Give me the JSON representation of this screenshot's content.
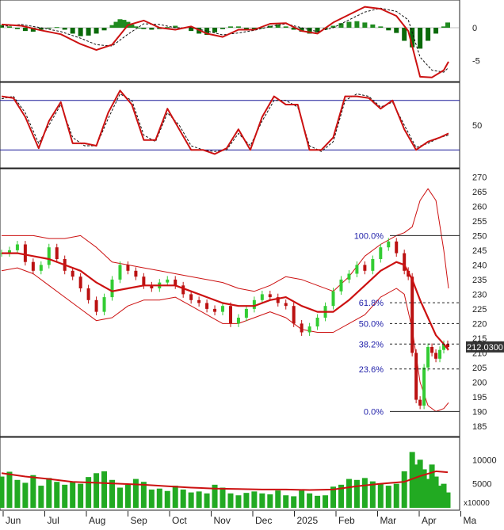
{
  "colors": {
    "frame": "#222222",
    "main_line": "#cc1111",
    "signal_line": "#111111",
    "hist_pos": "#1f8a1f",
    "hist_neg": "#0a6a0a",
    "candle_up": "#33cc33",
    "candle_down": "#bb1111",
    "fib_label": "#2222aa",
    "fib_line": "#222222",
    "rsi_band": "#1a1a99",
    "volume_bar": "#22aa22",
    "price_tag_bg": "#333333",
    "price_tag_text": "#ffffff"
  },
  "x_axis": {
    "labels": [
      "Jun",
      "Jul",
      "Aug",
      "Sep",
      "Oct",
      "Nov",
      "Dec",
      "2025",
      "Feb",
      "Mar",
      "Apr",
      "Ma"
    ]
  },
  "chart_data": [
    {
      "type": "bar",
      "panel": "macd",
      "ylim": [
        -8,
        4
      ],
      "ticks": [
        0,
        -5
      ],
      "tick_labels": [
        "0",
        "-5"
      ],
      "series": [
        {
          "role": "histogram",
          "x": [
            0,
            10,
            20,
            30,
            40,
            50,
            60,
            70,
            80,
            90,
            100,
            110,
            120,
            130,
            140,
            145,
            150,
            155,
            160,
            165,
            170,
            175,
            180,
            190,
            200,
            210,
            220,
            230,
            240,
            250,
            260,
            270,
            280,
            290,
            300,
            310,
            320,
            330,
            340,
            350,
            360,
            370,
            380,
            390,
            400,
            410,
            420,
            430,
            440,
            450,
            460,
            470,
            480,
            490,
            500,
            510,
            520,
            530,
            540,
            550,
            560,
            565
          ],
          "values": [
            0.4,
            0.2,
            -0.2,
            -0.5,
            -0.6,
            -0.3,
            -0.1,
            0.1,
            -0.3,
            -0.9,
            -1.3,
            -1.2,
            -0.9,
            -0.4,
            0.4,
            0.9,
            1.3,
            1.2,
            0.9,
            0.5,
            0.2,
            0,
            -0.2,
            -0.3,
            -0.2,
            0.1,
            0.3,
            -0.1,
            -0.5,
            -0.9,
            -1.1,
            -0.7,
            -0.2,
            0.2,
            0.2,
            -0.3,
            -0.2,
            0,
            0.3,
            0.5,
            0.2,
            -0.3,
            -0.6,
            -0.9,
            -0.7,
            -0.3,
            0.3,
            0.7,
            0.9,
            1.0,
            0.8,
            0.5,
            0.2,
            -0.4,
            -0.8,
            -2.0,
            -3.0,
            -3.2,
            -2.0,
            -0.9,
            0.2,
            0.8
          ]
        },
        {
          "role": "main",
          "x": [
            0,
            25,
            50,
            75,
            100,
            120,
            140,
            160,
            180,
            200,
            220,
            240,
            260,
            280,
            300,
            320,
            340,
            360,
            380,
            400,
            420,
            440,
            460,
            480,
            500,
            515,
            530,
            545,
            560,
            566
          ],
          "values": [
            0.5,
            0.3,
            -0.4,
            -1.0,
            -2.5,
            -3.4,
            -2.6,
            0.4,
            1.1,
            0,
            -0.3,
            0.2,
            -0.9,
            -1.4,
            -0.3,
            -0.3,
            0.6,
            0.7,
            -0.5,
            -0.9,
            0.8,
            2.0,
            3.2,
            2.9,
            1.8,
            -0.5,
            -7.5,
            -7.6,
            -6.5,
            -5.2
          ]
        },
        {
          "role": "signal",
          "x": [
            0,
            25,
            50,
            75,
            100,
            120,
            140,
            160,
            180,
            200,
            220,
            240,
            260,
            280,
            300,
            320,
            340,
            360,
            380,
            400,
            420,
            440,
            460,
            480,
            500,
            515,
            530,
            545,
            560,
            566
          ],
          "values": [
            0.2,
            0.5,
            0,
            -0.6,
            -1.6,
            -2.6,
            -2.8,
            -1.0,
            0.6,
            0.5,
            0,
            0,
            -0.5,
            -1.1,
            -0.8,
            -0.4,
            0.2,
            0.6,
            0,
            -0.6,
            0,
            1.2,
            2.4,
            3.0,
            2.5,
            1.2,
            -4.5,
            -6.5,
            -6.8,
            -6.1
          ]
        }
      ]
    },
    {
      "type": "line",
      "panel": "oscillator",
      "ylim": [
        0,
        100
      ],
      "ticks": [
        50
      ],
      "tick_labels": [
        "50"
      ],
      "bands": [
        80,
        20
      ],
      "series": [
        {
          "role": "main",
          "x": [
            0,
            15,
            30,
            47,
            60,
            75,
            90,
            105,
            120,
            135,
            150,
            165,
            180,
            195,
            210,
            225,
            240,
            255,
            270,
            285,
            300,
            315,
            330,
            345,
            360,
            375,
            390,
            405,
            420,
            435,
            450,
            465,
            480,
            495,
            510,
            525,
            540,
            555,
            566
          ],
          "values": [
            85,
            83,
            60,
            22,
            55,
            78,
            28,
            28,
            25,
            65,
            92,
            75,
            32,
            32,
            70,
            45,
            20,
            20,
            15,
            22,
            45,
            20,
            60,
            85,
            75,
            75,
            20,
            20,
            35,
            85,
            85,
            83,
            70,
            80,
            45,
            20,
            30,
            35,
            40
          ]
        },
        {
          "role": "signal",
          "x": [
            0,
            15,
            30,
            47,
            60,
            75,
            90,
            105,
            120,
            135,
            150,
            165,
            180,
            195,
            210,
            225,
            240,
            255,
            270,
            285,
            300,
            315,
            330,
            345,
            360,
            375,
            390,
            405,
            420,
            435,
            450,
            465,
            480,
            495,
            510,
            525,
            540,
            555,
            566
          ],
          "values": [
            82,
            85,
            65,
            28,
            50,
            75,
            35,
            25,
            25,
            58,
            88,
            80,
            38,
            30,
            65,
            50,
            25,
            20,
            18,
            20,
            40,
            25,
            55,
            80,
            80,
            72,
            25,
            18,
            30,
            80,
            88,
            85,
            72,
            78,
            50,
            23,
            28,
            35,
            38
          ]
        }
      ]
    },
    {
      "type": "candlestick",
      "panel": "price",
      "ylim": [
        182,
        272
      ],
      "ticks": [
        185,
        190,
        195,
        200,
        205,
        210,
        215,
        220,
        225,
        230,
        235,
        240,
        245,
        250,
        255,
        260,
        265,
        270
      ],
      "tick_labels": [
        "185",
        "190",
        "195",
        "200",
        "205",
        "210",
        "215",
        "220",
        "225",
        "230",
        "235",
        "240",
        "245",
        "250",
        "255",
        "260",
        "265",
        "270"
      ],
      "current_price_label": "212.0300",
      "current_price": 212.03,
      "fibonacci": [
        {
          "label": "100.0%",
          "value": 250,
          "style": "solid"
        },
        {
          "label": "61.8%",
          "value": 227.1,
          "style": "dashed"
        },
        {
          "label": "50.0%",
          "value": 220,
          "style": "dashed"
        },
        {
          "label": "38.2%",
          "value": 213,
          "style": "dashed"
        },
        {
          "label": "23.6%",
          "value": 204.5,
          "style": "dashed"
        },
        {
          "label": "0.0%",
          "value": 190,
          "style": "solid"
        }
      ],
      "close_x": [
        0,
        10,
        20,
        30,
        40,
        50,
        60,
        70,
        80,
        90,
        100,
        110,
        120,
        130,
        140,
        150,
        160,
        170,
        180,
        190,
        200,
        210,
        220,
        230,
        240,
        250,
        260,
        270,
        280,
        290,
        300,
        310,
        320,
        330,
        340,
        350,
        360,
        370,
        380,
        390,
        400,
        410,
        420,
        430,
        440,
        450,
        460,
        470,
        480,
        490,
        500,
        510,
        515,
        520,
        525,
        530,
        535,
        540,
        545,
        550,
        555,
        560,
        565
      ],
      "close": [
        244,
        245,
        247,
        241,
        238,
        240,
        246,
        242,
        238,
        236,
        232,
        228,
        224,
        229,
        235,
        240,
        238,
        236,
        233,
        232,
        234,
        235,
        233,
        230,
        228,
        227,
        225,
        224,
        226,
        220,
        222,
        225,
        228,
        230,
        229,
        227,
        226,
        220,
        217,
        219,
        222,
        226,
        231,
        235,
        237,
        240,
        238,
        242,
        246,
        248,
        244,
        238,
        236,
        210,
        194,
        192,
        205,
        212,
        210,
        208,
        211,
        213,
        212
      ],
      "ma": {
        "x": [
          0,
          20,
          40,
          60,
          80,
          100,
          120,
          140,
          160,
          180,
          200,
          220,
          240,
          260,
          280,
          300,
          320,
          340,
          360,
          380,
          400,
          420,
          440,
          460,
          480,
          500,
          510,
          520,
          530,
          540,
          550,
          560,
          566
        ],
        "values": [
          244,
          244,
          243,
          242,
          240,
          238,
          234,
          231,
          232,
          233,
          233,
          233,
          231,
          229,
          227,
          226,
          226,
          228,
          229,
          226,
          224,
          224,
          228,
          233,
          238,
          241,
          240,
          235,
          228,
          222,
          216,
          213,
          211
        ]
      },
      "upper_band": {
        "x": [
          0,
          20,
          40,
          60,
          80,
          100,
          120,
          140,
          160,
          180,
          200,
          220,
          240,
          260,
          280,
          300,
          320,
          340,
          360,
          380,
          400,
          420,
          440,
          460,
          480,
          500,
          510,
          520,
          530,
          540,
          550,
          560,
          566
        ],
        "values": [
          250,
          250,
          250,
          249,
          249,
          250,
          246,
          241,
          240,
          239,
          238,
          237,
          236,
          235,
          234,
          232,
          231,
          233,
          236,
          235,
          233,
          231,
          236,
          243,
          247,
          250,
          251,
          253,
          262,
          266,
          262,
          245,
          232
        ]
      },
      "lower_band": {
        "x": [
          0,
          20,
          40,
          60,
          80,
          100,
          120,
          140,
          160,
          180,
          200,
          220,
          240,
          260,
          280,
          300,
          320,
          340,
          360,
          380,
          400,
          420,
          440,
          460,
          480,
          500,
          510,
          520,
          530,
          540,
          550,
          560,
          566
        ],
        "values": [
          238,
          239,
          237,
          233,
          229,
          225,
          221,
          222,
          226,
          228,
          228,
          229,
          226,
          223,
          220,
          220,
          222,
          224,
          222,
          218,
          217,
          217,
          220,
          223,
          229,
          232,
          230,
          218,
          200,
          192,
          190,
          191,
          193
        ]
      }
    },
    {
      "type": "bar",
      "panel": "volume",
      "ylim": [
        0,
        14000
      ],
      "ticks": [
        10000,
        5000
      ],
      "tick_labels": [
        "10000",
        "5000"
      ],
      "unit_label": "x10000",
      "x": [
        0,
        10,
        20,
        30,
        40,
        50,
        60,
        70,
        80,
        90,
        100,
        110,
        120,
        130,
        140,
        150,
        160,
        170,
        180,
        190,
        200,
        210,
        220,
        230,
        240,
        250,
        260,
        270,
        280,
        290,
        300,
        310,
        320,
        330,
        340,
        350,
        360,
        370,
        380,
        390,
        400,
        410,
        420,
        430,
        440,
        450,
        460,
        470,
        480,
        490,
        500,
        510,
        520,
        525,
        530,
        535,
        540,
        545,
        550,
        555,
        560,
        565
      ],
      "values": [
        6500,
        7500,
        5800,
        5200,
        6800,
        4600,
        6200,
        5400,
        4800,
        5500,
        5000,
        6400,
        7200,
        7600,
        5800,
        4200,
        4800,
        6000,
        5400,
        3800,
        4000,
        3500,
        4600,
        3800,
        3200,
        3400,
        3000,
        4800,
        4200,
        3000,
        2600,
        3100,
        3400,
        3000,
        2800,
        3600,
        2600,
        2400,
        3600,
        3000,
        2500,
        2600,
        4400,
        4800,
        6000,
        5800,
        6200,
        5500,
        5000,
        4600,
        5000,
        7600,
        11600,
        9000,
        10000,
        8000,
        6000,
        9000,
        6500,
        4600,
        5000,
        3200
      ],
      "ma_x": [
        0,
        30,
        60,
        90,
        120,
        150,
        180,
        210,
        240,
        270,
        300,
        330,
        360,
        390,
        420,
        450,
        480,
        510,
        530,
        550,
        565
      ],
      "ma": [
        7200,
        6500,
        6000,
        5400,
        5200,
        5000,
        4800,
        4500,
        4200,
        4000,
        3900,
        3800,
        3800,
        3700,
        3800,
        4500,
        5000,
        5400,
        6600,
        7600,
        7400
      ]
    }
  ]
}
